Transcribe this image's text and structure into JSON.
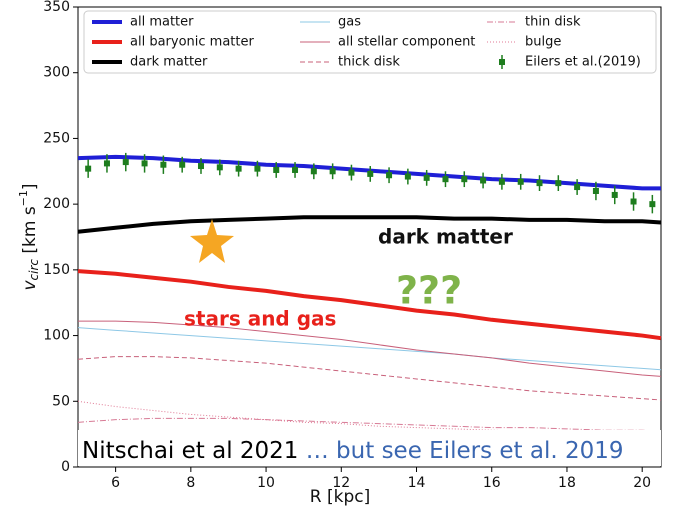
{
  "chart_data": {
    "type": "line",
    "xlabel": "R [kpc]",
    "ylabel_parts": [
      "v",
      "circ",
      " [km s",
      "−1",
      "]"
    ],
    "xlim": [
      5,
      20.5
    ],
    "ylim": [
      0,
      350
    ],
    "xticks": [
      6,
      8,
      10,
      12,
      14,
      16,
      18,
      20
    ],
    "yticks": [
      0,
      50,
      100,
      150,
      200,
      250,
      300,
      350
    ],
    "x": [
      5,
      6,
      7,
      8,
      9,
      10,
      11,
      12,
      13,
      14,
      15,
      16,
      17,
      18,
      19,
      20,
      20.5
    ],
    "series": [
      {
        "name": "all matter",
        "color": "#1f1fd6",
        "style": "solid",
        "width": 4,
        "values": [
          235,
          236,
          235,
          233,
          232,
          230,
          229,
          227,
          225,
          223,
          221,
          219,
          218,
          216,
          214,
          212,
          212
        ]
      },
      {
        "name": "all baryonic matter",
        "color": "#e8211b",
        "style": "solid",
        "width": 4,
        "values": [
          149,
          147,
          144,
          141,
          137,
          134,
          130,
          127,
          123,
          119,
          116,
          112,
          109,
          106,
          103,
          100,
          98
        ]
      },
      {
        "name": "dark matter",
        "color": "#000000",
        "style": "solid",
        "width": 4,
        "values": [
          179,
          182,
          185,
          187,
          188,
          189,
          190,
          190,
          190,
          190,
          189,
          189,
          188,
          188,
          187,
          187,
          186
        ]
      },
      {
        "name": "gas",
        "color": "#8ec8e6",
        "style": "solid",
        "width": 1,
        "values": [
          106,
          104,
          102,
          100,
          98,
          96,
          94,
          92,
          90,
          88,
          86,
          83,
          81,
          79,
          77,
          75,
          74
        ]
      },
      {
        "name": "all stellar component",
        "color": "#c8607a",
        "style": "solid",
        "width": 1,
        "values": [
          111,
          111,
          110,
          108,
          106,
          103,
          100,
          97,
          93,
          89,
          86,
          83,
          79,
          76,
          73,
          70,
          69
        ]
      },
      {
        "name": "thick disk",
        "color": "#c8607a",
        "style": "dashed",
        "width": 1,
        "values": [
          82,
          84,
          84,
          83,
          81,
          79,
          76,
          73,
          70,
          67,
          64,
          61,
          58,
          56,
          54,
          52,
          51
        ]
      },
      {
        "name": "thin disk",
        "color": "#d77a95",
        "style": "dashdot",
        "width": 1,
        "values": [
          34,
          36,
          37,
          37,
          37,
          36,
          35,
          34,
          33,
          32,
          31,
          30,
          30,
          29,
          28,
          28,
          27
        ]
      },
      {
        "name": "bulge",
        "color": "#e07a95",
        "style": "dotted",
        "width": 1,
        "values": [
          50,
          46,
          43,
          40,
          38,
          36,
          34,
          33,
          31,
          30,
          29,
          28,
          27,
          26,
          25,
          25,
          24
        ]
      }
    ],
    "points": {
      "name": "Eilers et al.(2019)",
      "color": "#1e7d1e",
      "x": [
        5.27,
        5.77,
        6.27,
        6.77,
        7.27,
        7.77,
        8.27,
        8.77,
        9.27,
        9.77,
        10.27,
        10.77,
        11.27,
        11.77,
        12.27,
        12.77,
        13.27,
        13.77,
        14.27,
        14.77,
        15.27,
        15.77,
        16.27,
        16.77,
        17.27,
        17.77,
        18.27,
        18.77,
        19.27,
        19.77,
        20.27
      ],
      "values": [
        227,
        231,
        232,
        231,
        230,
        230,
        229,
        228,
        227,
        227,
        226,
        226,
        225,
        225,
        224,
        223,
        222,
        221,
        220,
        219,
        219,
        218,
        217,
        217,
        216,
        216,
        213,
        210,
        207,
        202,
        200
      ],
      "errors": [
        7,
        7,
        7,
        7,
        7,
        6,
        6,
        6,
        6,
        6,
        6,
        6,
        6,
        6,
        6,
        6,
        6,
        6,
        6,
        6,
        6,
        6,
        6,
        6,
        6,
        6,
        6,
        7,
        7,
        7,
        7
      ]
    },
    "annotations": [
      "dark matter",
      "???",
      "stars  and gas"
    ],
    "footer": [
      "Nitschai et al 2021",
      " … but see Eilers et al. 2019"
    ]
  }
}
